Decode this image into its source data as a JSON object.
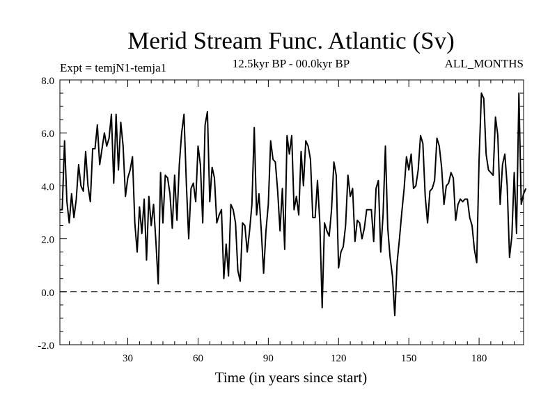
{
  "chart_data": {
    "type": "line",
    "title": "Merid Stream Func. Atlantic (Sv)",
    "subtitle_left": "Expt = temjN1-temja1",
    "subtitle_center": "12.5kyr BP - 00.0kyr BP",
    "subtitle_right": "ALL_MONTHS",
    "xlabel": "Time (in years since start)",
    "ylabel": "",
    "xlim": [
      1,
      199
    ],
    "ylim": [
      -2.0,
      8.0
    ],
    "x_ticks": [
      30,
      60,
      90,
      120,
      150,
      180
    ],
    "x_tick_labels": [
      "30",
      "60",
      "90",
      "120",
      "150",
      "180"
    ],
    "y_ticks": [
      -2.0,
      0.0,
      2.0,
      4.0,
      6.0,
      8.0
    ],
    "y_tick_labels": [
      "-2.0",
      "0.0",
      "2.0",
      "4.0",
      "6.0",
      "8.0"
    ],
    "reference_line": 0.0,
    "series": [
      {
        "name": "Merid Stream Func. Atlantic",
        "x_start": 1,
        "x_step": 1,
        "values": [
          3.1,
          3.1,
          5.7,
          3.4,
          2.6,
          3.7,
          2.8,
          3.5,
          4.8,
          4.0,
          3.8,
          5.3,
          4.0,
          3.4,
          5.4,
          5.4,
          6.3,
          4.8,
          5.4,
          6.0,
          5.5,
          5.8,
          6.7,
          4.1,
          6.7,
          4.6,
          6.4,
          5.5,
          3.6,
          4.3,
          4.6,
          5.1,
          2.6,
          1.5,
          3.2,
          2.2,
          3.5,
          1.2,
          3.6,
          2.5,
          3.3,
          1.9,
          0.3,
          4.5,
          2.6,
          4.4,
          4.3,
          3.7,
          2.4,
          4.4,
          2.7,
          4.8,
          6.0,
          6.7,
          4.1,
          2.0,
          3.9,
          4.1,
          3.4,
          5.5,
          4.8,
          2.6,
          6.3,
          6.8,
          3.4,
          4.7,
          4.3,
          2.6,
          2.9,
          3.1,
          0.5,
          1.8,
          0.6,
          3.3,
          3.1,
          2.6,
          0.8,
          0.4,
          2.6,
          2.5,
          1.5,
          2.3,
          3.3,
          6.2,
          2.9,
          3.7,
          2.3,
          0.7,
          2.3,
          3.3,
          5.7,
          5.0,
          4.9,
          3.8,
          2.3,
          3.9,
          1.6,
          5.9,
          5.2,
          5.9,
          3.1,
          3.6,
          2.9,
          5.3,
          4.0,
          5.7,
          5.5,
          5.0,
          2.8,
          2.8,
          4.2,
          2.6,
          -0.6,
          2.6,
          2.3,
          2.1,
          3.1,
          4.9,
          4.4,
          0.9,
          1.5,
          1.7,
          2.5,
          4.4,
          3.6,
          3.9,
          1.9,
          2.7,
          2.6,
          2.0,
          2.4,
          3.1,
          3.1,
          3.1,
          1.9,
          3.9,
          4.2,
          1.5,
          2.9,
          5.5,
          2.4,
          1.3,
          0.6,
          -0.9,
          1.1,
          2.0,
          3.0,
          3.9,
          5.1,
          4.6,
          5.2,
          3.9,
          4.0,
          4.6,
          5.9,
          5.6,
          3.6,
          2.6,
          3.8,
          3.9,
          4.2,
          5.8,
          5.5,
          4.7,
          3.3,
          4.0,
          4.1,
          4.5,
          4.3,
          2.7,
          3.3,
          3.5,
          3.4,
          3.5,
          3.5,
          2.8,
          2.5,
          1.6,
          1.1,
          5.0,
          7.5,
          7.3,
          5.2,
          4.6,
          4.5,
          4.4,
          6.6,
          5.9,
          3.3,
          4.8,
          5.2,
          4.0,
          1.3,
          2.1,
          4.5,
          2.2,
          7.5,
          3.3,
          3.7,
          3.9
        ]
      }
    ]
  }
}
